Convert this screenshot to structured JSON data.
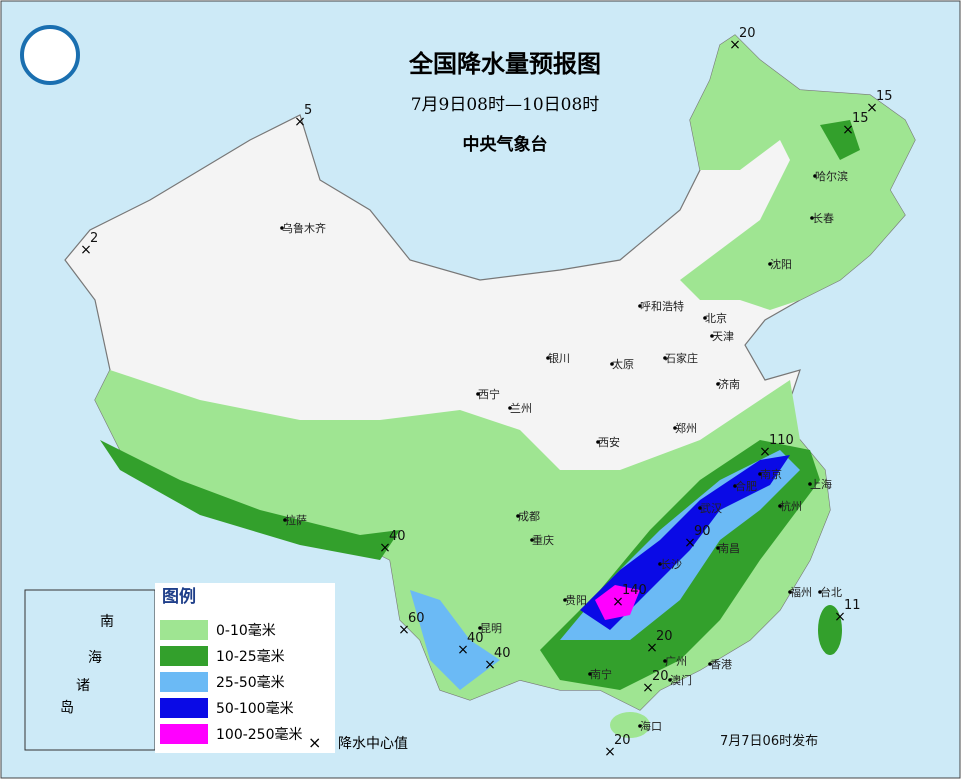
{
  "header": {
    "title": "全国降水量预报图",
    "period": "7月9日08时—10日08时",
    "issuer": "中央气象台"
  },
  "legend": {
    "title": "图例",
    "items": [
      {
        "label": "0-10毫米",
        "color": "#9fe592"
      },
      {
        "label": "10-25毫米",
        "color": "#33a02c"
      },
      {
        "label": "25-50毫米",
        "color": "#6bbaf5"
      },
      {
        "label": "50-100毫米",
        "color": "#0a0ae6"
      },
      {
        "label": "100-250毫米",
        "color": "#ff00ff"
      }
    ],
    "center_label": "降水中心值"
  },
  "cities": [
    "乌鲁木齐",
    "拉萨",
    "西宁",
    "兰州",
    "银川",
    "呼和浩特",
    "北京",
    "天津",
    "石家庄",
    "太原",
    "济南",
    "郑州",
    "西安",
    "成都",
    "重庆",
    "贵阳",
    "昆明",
    "南宁",
    "长沙",
    "武汉",
    "合肥",
    "南京",
    "上海",
    "杭州",
    "南昌",
    "福州",
    "台北",
    "广州",
    "香港",
    "澳门",
    "海口",
    "哈尔滨",
    "长春",
    "沈阳"
  ],
  "centers": [
    20,
    15,
    15,
    5,
    2,
    110,
    90,
    140,
    40,
    60,
    40,
    40,
    20,
    20,
    20,
    11
  ],
  "inset": [
    "南",
    "海",
    "诸",
    "岛"
  ],
  "footer": "7月7日06时发布"
}
